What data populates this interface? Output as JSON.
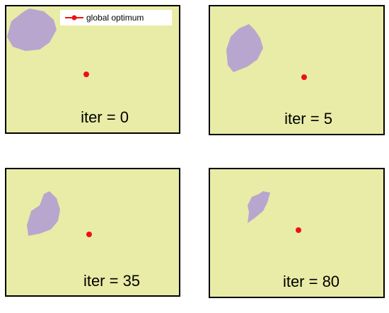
{
  "legend": {
    "label": "global optimum"
  },
  "panels": [
    {
      "label": "iter = 0"
    },
    {
      "label": "iter = 5"
    },
    {
      "label": "iter = 35"
    },
    {
      "label": "iter = 80"
    }
  ]
}
